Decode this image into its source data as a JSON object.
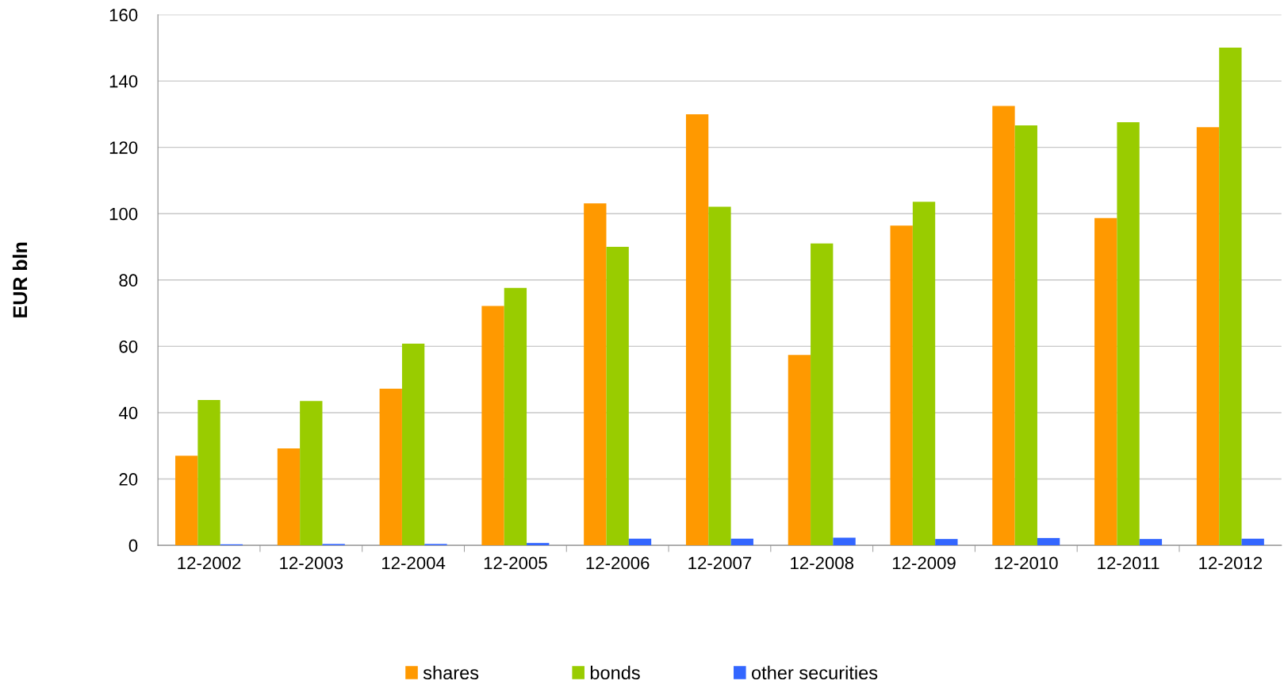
{
  "chart_data": {
    "type": "bar",
    "ylabel": "EUR bln",
    "categories": [
      "12-2002",
      "12-2003",
      "12-2004",
      "12-2005",
      "12-2006",
      "12-2007",
      "12-2008",
      "12-2009",
      "12-2010",
      "12-2011",
      "12-2012"
    ],
    "series": [
      {
        "name": "shares",
        "color": "#ff9900",
        "values": [
          27,
          29.2,
          47.2,
          72.2,
          103.1,
          130,
          57.4,
          96.4,
          132.5,
          98.7,
          126.1
        ]
      },
      {
        "name": "bonds",
        "color": "#99cc00",
        "values": [
          43.8,
          43.5,
          60.8,
          77.6,
          90,
          102.1,
          91,
          103.6,
          126.6,
          127.6,
          150.1
        ]
      },
      {
        "name": "other securities",
        "color": "#3366ff",
        "values": [
          0.3,
          0.4,
          0.4,
          0.7,
          2,
          2,
          2.3,
          1.9,
          2.2,
          1.9,
          2
        ]
      }
    ],
    "ylim": [
      0,
      160
    ],
    "yticks": [
      0,
      20,
      40,
      60,
      80,
      100,
      120,
      140,
      160
    ],
    "grid": "y",
    "legend": "bottom"
  }
}
